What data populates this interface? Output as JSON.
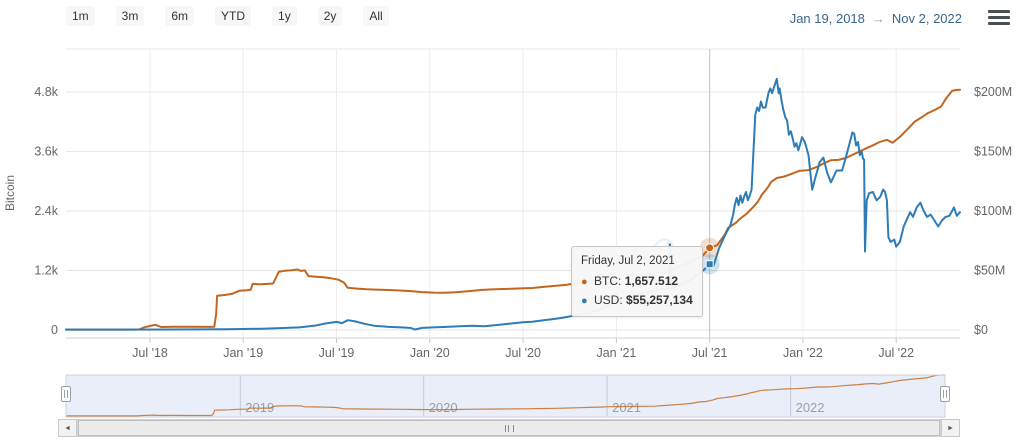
{
  "header": {
    "range_buttons": [
      "1m",
      "3m",
      "6m",
      "YTD",
      "1y",
      "2y",
      "All"
    ],
    "date_from": "Jan 19, 2018",
    "date_arrow": "→",
    "date_to": "Nov 2, 2022",
    "menu_icon": "hamburger-menu"
  },
  "chart": {
    "left_axis": {
      "title": "Bitcoin",
      "ticks": [
        {
          "v": 0,
          "label": "0"
        },
        {
          "v": 1200,
          "label": "1.2k"
        },
        {
          "v": 2400,
          "label": "2.4k"
        },
        {
          "v": 3600,
          "label": "3.6k"
        },
        {
          "v": 4800,
          "label": "4.8k"
        }
      ]
    },
    "right_axis": {
      "ticks": [
        {
          "v": 0,
          "label": "$0"
        },
        {
          "v": 50,
          "label": "$50M"
        },
        {
          "v": 100,
          "label": "$100M"
        },
        {
          "v": 150,
          "label": "$150M"
        },
        {
          "v": 200,
          "label": "$200M"
        }
      ]
    },
    "x_axis": {
      "ticks": [
        {
          "t": 2018.5,
          "label": "Jul '18"
        },
        {
          "t": 2019.0,
          "label": "Jan '19"
        },
        {
          "t": 2019.5,
          "label": "Jul '19"
        },
        {
          "t": 2020.0,
          "label": "Jan '20"
        },
        {
          "t": 2020.5,
          "label": "Jul '20"
        },
        {
          "t": 2021.0,
          "label": "Jan '21"
        },
        {
          "t": 2021.5,
          "label": "Jul '21"
        },
        {
          "t": 2022.0,
          "label": "Jan '22"
        },
        {
          "t": 2022.5,
          "label": "Jul '22"
        }
      ]
    },
    "tooltip": {
      "title": "Friday, Jul 2, 2021",
      "rows": [
        {
          "bullet": "●",
          "label": "BTC:",
          "value": "1,657.512"
        },
        {
          "bullet": "●",
          "label": "USD:",
          "value": "$55,257,134"
        }
      ]
    },
    "hover_point": {
      "t": 2021.5,
      "btc": 1657.512,
      "usd_millions": 55.257134
    }
  },
  "chart_data": {
    "type": "line",
    "title": "",
    "x_unit": "decimal year (date)",
    "x_range_years": [
      2018.05,
      2022.842
    ],
    "left_ylim": [
      0,
      4800
    ],
    "right_ylim_millions": [
      0,
      200
    ],
    "grid": true,
    "legend_position": "none",
    "series": [
      {
        "name": "BTC",
        "axis": "left",
        "color": "#c2661f",
        "units": "BTC",
        "points": [
          [
            2018.05,
            8
          ],
          [
            2018.2,
            8
          ],
          [
            2018.35,
            8
          ],
          [
            2018.44,
            10
          ],
          [
            2018.47,
            55
          ],
          [
            2018.5,
            80
          ],
          [
            2018.53,
            105
          ],
          [
            2018.56,
            60
          ],
          [
            2018.62,
            66
          ],
          [
            2018.72,
            64
          ],
          [
            2018.82,
            62
          ],
          [
            2018.845,
            64
          ],
          [
            2018.855,
            330
          ],
          [
            2018.86,
            690
          ],
          [
            2018.9,
            705
          ],
          [
            2018.94,
            728
          ],
          [
            2018.98,
            792
          ],
          [
            2019.02,
            802
          ],
          [
            2019.04,
            812
          ],
          [
            2019.05,
            930
          ],
          [
            2019.09,
            924
          ],
          [
            2019.13,
            930
          ],
          [
            2019.16,
            938
          ],
          [
            2019.19,
            1172
          ],
          [
            2019.22,
            1194
          ],
          [
            2019.26,
            1206
          ],
          [
            2019.29,
            1220
          ],
          [
            2019.31,
            1192
          ],
          [
            2019.33,
            1202
          ],
          [
            2019.35,
            1088
          ],
          [
            2019.39,
            1074
          ],
          [
            2019.43,
            1062
          ],
          [
            2019.47,
            1042
          ],
          [
            2019.51,
            1015
          ],
          [
            2019.54,
            955
          ],
          [
            2019.56,
            852
          ],
          [
            2019.61,
            834
          ],
          [
            2019.66,
            822
          ],
          [
            2019.73,
            812
          ],
          [
            2019.81,
            800
          ],
          [
            2019.89,
            786
          ],
          [
            2019.96,
            764
          ],
          [
            2020.02,
            754
          ],
          [
            2020.08,
            750
          ],
          [
            2020.14,
            760
          ],
          [
            2020.21,
            784
          ],
          [
            2020.28,
            808
          ],
          [
            2020.35,
            820
          ],
          [
            2020.42,
            828
          ],
          [
            2020.49,
            838
          ],
          [
            2020.55,
            848
          ],
          [
            2020.61,
            870
          ],
          [
            2020.67,
            890
          ],
          [
            2020.73,
            910
          ],
          [
            2020.79,
            945
          ],
          [
            2020.85,
            975
          ],
          [
            2020.9,
            1012
          ],
          [
            2020.96,
            1055
          ],
          [
            2021.01,
            1094
          ],
          [
            2021.06,
            1108
          ],
          [
            2021.11,
            1120
          ],
          [
            2021.16,
            1134
          ],
          [
            2021.21,
            1146
          ],
          [
            2021.26,
            1160
          ],
          [
            2021.31,
            1235
          ],
          [
            2021.36,
            1312
          ],
          [
            2021.41,
            1398
          ],
          [
            2021.46,
            1485
          ],
          [
            2021.5,
            1657.512
          ],
          [
            2021.54,
            1708
          ],
          [
            2021.58,
            1920
          ],
          [
            2021.6,
            2065
          ],
          [
            2021.64,
            2160
          ],
          [
            2021.66,
            2235
          ],
          [
            2021.7,
            2350
          ],
          [
            2021.73,
            2465
          ],
          [
            2021.76,
            2595
          ],
          [
            2021.78,
            2728
          ],
          [
            2021.81,
            2865
          ],
          [
            2021.83,
            2988
          ],
          [
            2021.86,
            3065
          ],
          [
            2021.9,
            3095
          ],
          [
            2021.94,
            3150
          ],
          [
            2021.98,
            3208
          ],
          [
            2022.03,
            3225
          ],
          [
            2022.08,
            3295
          ],
          [
            2022.11,
            3358
          ],
          [
            2022.15,
            3425
          ],
          [
            2022.19,
            3430
          ],
          [
            2022.23,
            3468
          ],
          [
            2022.29,
            3575
          ],
          [
            2022.33,
            3648
          ],
          [
            2022.37,
            3715
          ],
          [
            2022.41,
            3790
          ],
          [
            2022.45,
            3835
          ],
          [
            2022.48,
            3775
          ],
          [
            2022.52,
            3895
          ],
          [
            2022.56,
            4048
          ],
          [
            2022.6,
            4205
          ],
          [
            2022.64,
            4298
          ],
          [
            2022.67,
            4375
          ],
          [
            2022.71,
            4445
          ],
          [
            2022.74,
            4505
          ],
          [
            2022.77,
            4685
          ],
          [
            2022.8,
            4825
          ],
          [
            2022.82,
            4840
          ],
          [
            2022.842,
            4845
          ]
        ]
      },
      {
        "name": "USD",
        "axis": "right",
        "color": "#2e7cb5",
        "units": "million USD",
        "points": [
          [
            2018.05,
            0.3
          ],
          [
            2018.3,
            0.35
          ],
          [
            2018.6,
            0.45
          ],
          [
            2018.9,
            0.6
          ],
          [
            2019.0,
            0.8
          ],
          [
            2019.1,
            1.1
          ],
          [
            2019.2,
            1.6
          ],
          [
            2019.3,
            2.2
          ],
          [
            2019.38,
            3.5
          ],
          [
            2019.44,
            5.5
          ],
          [
            2019.5,
            6.8
          ],
          [
            2019.53,
            5.8
          ],
          [
            2019.56,
            8.2
          ],
          [
            2019.6,
            7.2
          ],
          [
            2019.65,
            5.2
          ],
          [
            2019.7,
            3.6
          ],
          [
            2019.78,
            2.6
          ],
          [
            2019.86,
            2.1
          ],
          [
            2019.9,
            1.7
          ],
          [
            2019.92,
            0.4
          ],
          [
            2019.96,
            1.8
          ],
          [
            2020.02,
            2.2
          ],
          [
            2020.09,
            2.6
          ],
          [
            2020.16,
            3.1
          ],
          [
            2020.23,
            3.6
          ],
          [
            2020.29,
            3.2
          ],
          [
            2020.36,
            4.2
          ],
          [
            2020.43,
            5.4
          ],
          [
            2020.5,
            6.5
          ],
          [
            2020.55,
            7.0
          ],
          [
            2020.61,
            8.2
          ],
          [
            2020.67,
            9.3
          ],
          [
            2020.72,
            10.5
          ],
          [
            2020.78,
            12.3
          ],
          [
            2020.84,
            14.0
          ],
          [
            2020.9,
            16.2
          ],
          [
            2020.95,
            20.6
          ],
          [
            2021.0,
            24.6
          ],
          [
            2021.04,
            27.6
          ],
          [
            2021.08,
            29.6
          ],
          [
            2021.12,
            30.1
          ],
          [
            2021.16,
            31.6
          ],
          [
            2021.2,
            33.1
          ],
          [
            2021.24,
            34.6
          ],
          [
            2021.28,
            34.1
          ],
          [
            2021.287,
            72.0
          ],
          [
            2021.295,
            35.2
          ],
          [
            2021.32,
            36.6
          ],
          [
            2021.36,
            39.2
          ],
          [
            2021.4,
            42.2
          ],
          [
            2021.44,
            47.2
          ],
          [
            2021.47,
            50.6
          ],
          [
            2021.5,
            55.257
          ],
          [
            2021.52,
            53.8
          ],
          [
            2021.535,
            61
          ],
          [
            2021.55,
            68.5
          ],
          [
            2021.57,
            75.5
          ],
          [
            2021.59,
            82
          ],
          [
            2021.61,
            87.5
          ],
          [
            2021.625,
            96.5
          ],
          [
            2021.635,
            105
          ],
          [
            2021.645,
            111
          ],
          [
            2021.655,
            105
          ],
          [
            2021.665,
            113
          ],
          [
            2021.675,
            107
          ],
          [
            2021.685,
            112
          ],
          [
            2021.695,
            116
          ],
          [
            2021.705,
            109
          ],
          [
            2021.715,
            113
          ],
          [
            2021.725,
            118
          ],
          [
            2021.735,
            151
          ],
          [
            2021.745,
            181
          ],
          [
            2021.755,
            187
          ],
          [
            2021.765,
            184
          ],
          [
            2021.775,
            192
          ],
          [
            2021.785,
            187
          ],
          [
            2021.8,
            187
          ],
          [
            2021.815,
            199
          ],
          [
            2021.825,
            203
          ],
          [
            2021.835,
            199
          ],
          [
            2021.845,
            204
          ],
          [
            2021.86,
            211
          ],
          [
            2021.87,
            199
          ],
          [
            2021.875,
            203
          ],
          [
            2021.885,
            193
          ],
          [
            2021.895,
            185
          ],
          [
            2021.905,
            179
          ],
          [
            2021.915,
            176
          ],
          [
            2021.925,
            164
          ],
          [
            2021.935,
            167
          ],
          [
            2021.945,
            161
          ],
          [
            2021.955,
            154
          ],
          [
            2021.965,
            157
          ],
          [
            2021.975,
            151
          ],
          [
            2021.985,
            156
          ],
          [
            2021.995,
            162
          ],
          [
            2022.01,
            158
          ],
          [
            2022.03,
            147
          ],
          [
            2022.05,
            118
          ],
          [
            2022.07,
            130
          ],
          [
            2022.09,
            141
          ],
          [
            2022.11,
            145
          ],
          [
            2022.13,
            132
          ],
          [
            2022.15,
            124
          ],
          [
            2022.18,
            134
          ],
          [
            2022.21,
            134
          ],
          [
            2022.23,
            145
          ],
          [
            2022.25,
            157
          ],
          [
            2022.265,
            166
          ],
          [
            2022.275,
            165
          ],
          [
            2022.285,
            155
          ],
          [
            2022.295,
            158
          ],
          [
            2022.305,
            147
          ],
          [
            2022.315,
            150
          ],
          [
            2022.322,
            144
          ],
          [
            2022.328,
            143
          ],
          [
            2022.333,
            66
          ],
          [
            2022.342,
            109
          ],
          [
            2022.355,
            115
          ],
          [
            2022.375,
            116
          ],
          [
            2022.395,
            109
          ],
          [
            2022.415,
            112
          ],
          [
            2022.43,
            118
          ],
          [
            2022.44,
            116
          ],
          [
            2022.45,
            109
          ],
          [
            2022.458,
            78
          ],
          [
            2022.47,
            74
          ],
          [
            2022.49,
            76
          ],
          [
            2022.5,
            70
          ],
          [
            2022.52,
            74
          ],
          [
            2022.54,
            87
          ],
          [
            2022.56,
            94
          ],
          [
            2022.575,
            99
          ],
          [
            2022.59,
            95
          ],
          [
            2022.61,
            103
          ],
          [
            2022.63,
            107
          ],
          [
            2022.645,
            101
          ],
          [
            2022.665,
            95
          ],
          [
            2022.685,
            97
          ],
          [
            2022.705,
            92
          ],
          [
            2022.725,
            87
          ],
          [
            2022.745,
            92
          ],
          [
            2022.765,
            95
          ],
          [
            2022.785,
            96
          ],
          [
            2022.81,
            103
          ],
          [
            2022.825,
            96
          ],
          [
            2022.842,
            99
          ]
        ]
      }
    ]
  },
  "navigator": {
    "years": [
      {
        "t": 2019,
        "label": "2019"
      },
      {
        "t": 2020,
        "label": "2020"
      },
      {
        "t": 2021,
        "label": "2021"
      },
      {
        "t": 2022,
        "label": "2022"
      }
    ]
  },
  "scrollbar": {
    "left_arrow": "◄",
    "right_arrow": "►"
  },
  "colors": {
    "btc": "#c2661f",
    "usd": "#2e7cb5",
    "grid": "#e6e6e6",
    "axis_text": "#666666",
    "nav_fill": "#e9eef8",
    "nav_border": "#cdd3de",
    "date_text": "#38658c"
  }
}
